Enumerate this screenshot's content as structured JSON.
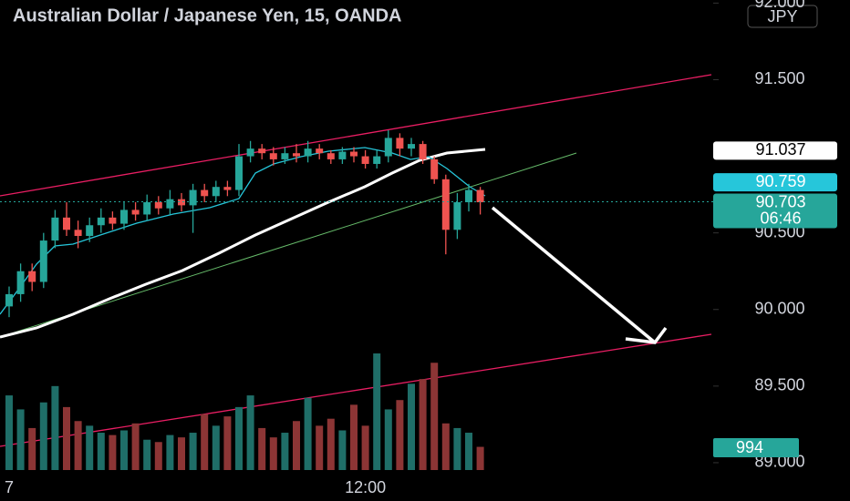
{
  "chart_data": {
    "type": "candlestick",
    "title": "Australian Dollar / Japanese Yen, 15, OANDA",
    "currency": "JPY",
    "categories": [
      "7",
      null,
      null,
      null,
      null,
      null,
      null,
      null,
      null,
      null,
      null,
      null,
      null,
      null,
      null,
      null,
      null,
      null,
      null,
      null,
      null,
      null,
      null,
      null,
      null,
      null,
      null,
      null,
      null,
      null,
      null,
      "12:00",
      null,
      null,
      null,
      null,
      null,
      null,
      null,
      null,
      null,
      null
    ],
    "open": [
      90.02,
      90.1,
      90.25,
      90.18,
      90.45,
      90.6,
      90.52,
      90.48,
      90.55,
      90.6,
      90.56,
      90.65,
      90.62,
      90.7,
      90.66,
      90.72,
      90.68,
      90.78,
      90.74,
      90.8,
      90.78,
      91.0,
      91.05,
      91.02,
      90.98,
      91.02,
      91.0,
      91.05,
      91.02,
      90.98,
      91.03,
      91.0,
      90.95,
      91.0,
      91.12,
      91.05,
      91.08,
      90.98,
      90.85,
      90.52,
      90.7,
      90.78
    ],
    "high": [
      90.15,
      90.3,
      90.3,
      90.5,
      90.65,
      90.7,
      90.58,
      90.6,
      90.66,
      90.64,
      90.7,
      90.7,
      90.75,
      90.74,
      90.78,
      90.76,
      90.82,
      90.82,
      90.84,
      90.84,
      91.08,
      91.1,
      91.08,
      91.06,
      91.06,
      91.08,
      91.1,
      91.08,
      91.04,
      91.06,
      91.06,
      91.04,
      91.04,
      91.17,
      91.15,
      91.12,
      91.1,
      91.0,
      90.88,
      90.76,
      90.82,
      90.8
    ],
    "low": [
      89.95,
      90.05,
      90.12,
      90.14,
      90.4,
      90.48,
      90.4,
      90.44,
      90.5,
      90.52,
      90.52,
      90.58,
      90.58,
      90.62,
      90.62,
      90.64,
      90.5,
      90.7,
      90.7,
      90.74,
      90.74,
      90.96,
      90.98,
      90.94,
      90.95,
      90.96,
      90.96,
      90.98,
      90.95,
      90.95,
      90.96,
      90.92,
      90.92,
      90.96,
      91.0,
      91.0,
      90.95,
      90.82,
      90.36,
      90.46,
      90.64,
      90.62
    ],
    "close": [
      90.1,
      90.25,
      90.18,
      90.45,
      90.6,
      90.52,
      90.48,
      90.55,
      90.6,
      90.56,
      90.65,
      90.62,
      90.7,
      90.66,
      90.72,
      90.68,
      90.78,
      90.74,
      90.8,
      90.78,
      91.0,
      91.05,
      91.02,
      90.98,
      91.02,
      91.0,
      91.05,
      91.02,
      90.98,
      91.03,
      91.0,
      90.95,
      91.0,
      91.12,
      91.05,
      91.08,
      90.98,
      90.85,
      90.52,
      90.7,
      90.78,
      90.7
    ],
    "volume": [
      3200,
      2600,
      1800,
      2900,
      3600,
      2700,
      2100,
      1900,
      1600,
      1500,
      1700,
      2000,
      1300,
      1200,
      1500,
      1400,
      1600,
      2400,
      1900,
      2300,
      2700,
      3200,
      1800,
      1400,
      1600,
      2100,
      3100,
      1900,
      2200,
      1700,
      2800,
      1900,
      5000,
      2600,
      3000,
      3700,
      3900,
      4600,
      2000,
      1800,
      1600,
      994
    ],
    "ylim": [
      88.75,
      92.02
    ],
    "yticks": [
      {
        "value": 89,
        "label": "89.000"
      },
      {
        "value": 89.5,
        "label": "89.500"
      },
      {
        "value": 90,
        "label": "90.000"
      },
      {
        "value": 90.5,
        "label": "90.500"
      },
      {
        "value": 91.5,
        "label": "91.500"
      },
      {
        "value": 92,
        "label": "92.000"
      }
    ],
    "markers": [
      {
        "value": 91.037,
        "color": "#ffffff"
      },
      {
        "value": 90.759,
        "color": "#26c6da"
      },
      {
        "value": 90.703,
        "color": "#26a69a"
      }
    ],
    "countdown": "06:46",
    "up_color": "#26a69a",
    "down_color": "#ef5350",
    "volume_up_color": "#1f6e68",
    "volume_down_color": "#8c3535"
  }
}
